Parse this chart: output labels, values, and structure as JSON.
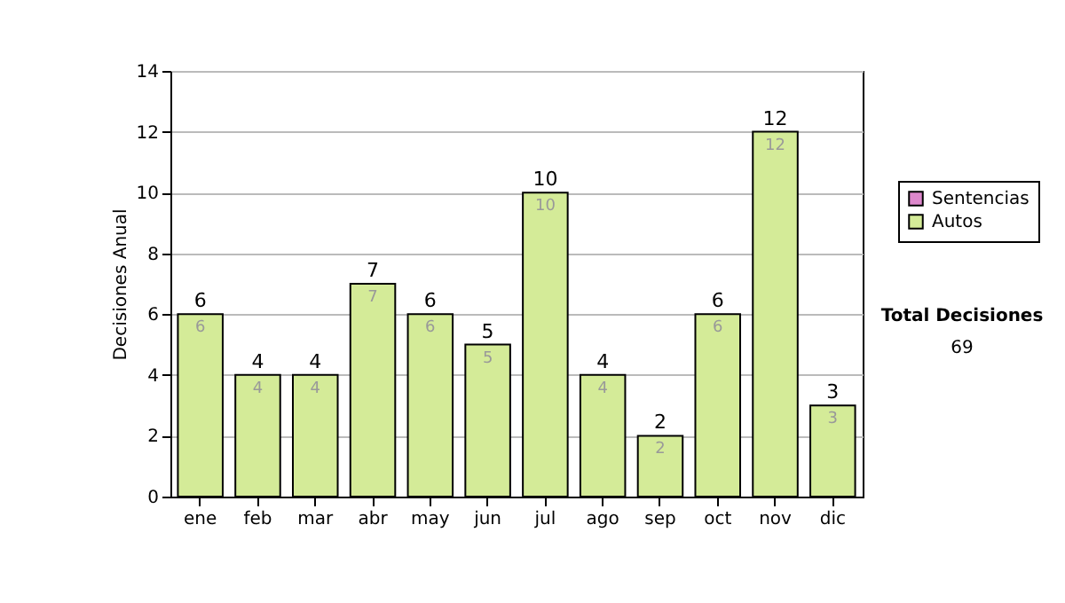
{
  "chart_data": {
    "type": "bar",
    "ylabel": "Decisiones Anual",
    "categories": [
      "ene",
      "feb",
      "mar",
      "abr",
      "may",
      "jun",
      "jul",
      "ago",
      "sep",
      "oct",
      "nov",
      "dic"
    ],
    "series": [
      {
        "name": "Autos",
        "color": "#d4eb98",
        "values": [
          6,
          4,
          4,
          7,
          6,
          5,
          10,
          4,
          2,
          6,
          12,
          3
        ]
      },
      {
        "name": "Sentencias",
        "color": "#dd88cc",
        "values": [
          null,
          null,
          null,
          null,
          null,
          null,
          null,
          null,
          null,
          null,
          null,
          null
        ]
      }
    ],
    "stacked": true,
    "data_labels": true,
    "totals": [
      "6",
      "4",
      "4",
      "7",
      "6",
      "5",
      "10",
      "4",
      "2",
      "6",
      "12",
      "3"
    ],
    "ylim": [
      0,
      14
    ],
    "yticks": [
      0,
      2,
      4,
      6,
      8,
      10,
      12,
      14
    ],
    "grid": "y",
    "legend": "right",
    "annotations": [
      "Total Decisiones",
      "69"
    ]
  }
}
